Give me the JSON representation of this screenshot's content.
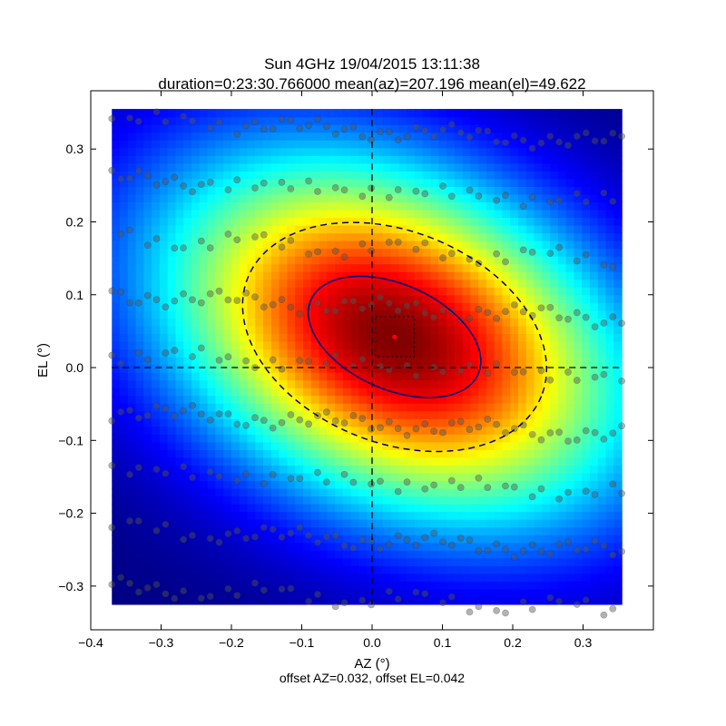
{
  "figure": {
    "title_line1": "Sun 4GHz 19/04/2015 13:11:38",
    "title_line2": "duration=0:23:30.766000 mean(az)=207.196 mean(el)=49.622",
    "xlabel": "AZ (°)",
    "ylabel": "EL (°)",
    "footer": "offset AZ=0.032, offset EL=0.042"
  },
  "chart_data": {
    "type": "heatmap",
    "title": "Sun 4GHz 19/04/2015 13:11:38",
    "subtitle": "duration=0:23:30.766000 mean(az)=207.196 mean(el)=49.622",
    "xlabel": "AZ (°)",
    "ylabel": "EL (°)",
    "xlim": [
      -0.4,
      0.4
    ],
    "ylim": [
      -0.36,
      0.38
    ],
    "heatmap_extent": {
      "x": [
        -0.37,
        0.355
      ],
      "y": [
        -0.325,
        0.355
      ]
    },
    "colormap": "jet",
    "beam_model": {
      "center": [
        0.032,
        0.042
      ],
      "sigma_major": 0.24,
      "sigma_minor": 0.155,
      "angle_deg": -24
    },
    "x_ticks": [
      "−0.4",
      "−0.3",
      "−0.2",
      "−0.1",
      "0.0",
      "0.1",
      "0.2",
      "0.3"
    ],
    "x_tick_values": [
      -0.4,
      -0.3,
      -0.2,
      -0.1,
      0.0,
      0.1,
      0.2,
      0.3
    ],
    "y_ticks": [
      "−0.3",
      "−0.2",
      "−0.1",
      "0.0",
      "0.1",
      "0.2",
      "0.3"
    ],
    "y_tick_values": [
      -0.3,
      -0.2,
      -0.1,
      0.0,
      0.1,
      0.2,
      0.3
    ],
    "offset": {
      "az": 0.032,
      "el": 0.042
    },
    "contours": [
      {
        "style": "solid",
        "color": "#000080",
        "center": [
          0.032,
          0.042
        ],
        "semi_major": 0.13,
        "semi_minor": 0.072,
        "angle_deg": -24
      },
      {
        "style": "dashed",
        "color": "#000080",
        "center": [
          0.032,
          0.042
        ],
        "semi_major": 0.225,
        "semi_minor": 0.145,
        "angle_deg": -22
      }
    ],
    "crosshair": {
      "x": 0.0,
      "y": 0.0,
      "style": "dashed",
      "color": "#000000"
    },
    "offset_box": {
      "x": [
        0.005,
        0.06
      ],
      "y": [
        0.015,
        0.07
      ],
      "style": "dotted"
    },
    "center_marker": {
      "x": 0.032,
      "y": 0.042,
      "color": "#ff0000"
    },
    "scan_points": {
      "color": "#555555",
      "opacity": 0.45,
      "rows_el": [
        0.325,
        0.243,
        0.163,
        0.083,
        0.003,
        -0.077,
        -0.157,
        -0.237,
        -0.317
      ],
      "rows_slope": -0.045,
      "x_range": [
        -0.37,
        0.355
      ],
      "points_per_row": 58
    }
  },
  "colors": {
    "contour": "#000080",
    "marker": "#ff0000",
    "axes": "#000000"
  }
}
